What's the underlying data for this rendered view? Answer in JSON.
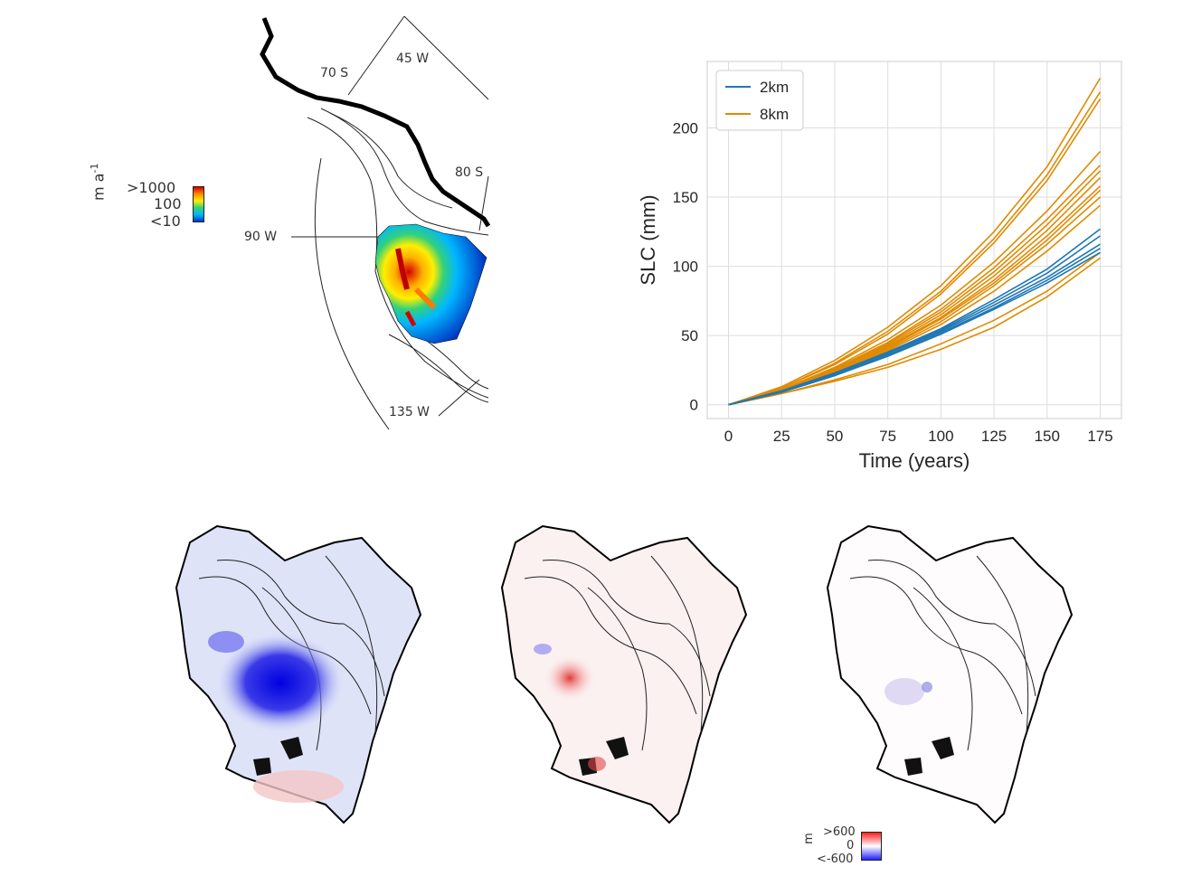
{
  "map_panel": {
    "colorbar": {
      "unit": "m a",
      "unit_exp": "-1",
      "ticks": [
        ">1000",
        "100",
        "<10"
      ],
      "colors": [
        "#d40000",
        "#ff8a00",
        "#ffee00",
        "#33d17a",
        "#00b7ff",
        "#0038c8"
      ]
    },
    "graticule_labels": {
      "lat_70": "70 S",
      "lat_80": "80 S",
      "lon_45": "45 W",
      "lon_90": "90 W",
      "lon_135": "135 W"
    }
  },
  "chart_data": {
    "type": "line",
    "ylabel": "SLC (mm)",
    "xlabel": "Time (years)",
    "xlim": [
      -10,
      185
    ],
    "ylim": [
      -10,
      248
    ],
    "x_ticks": [
      0,
      25,
      50,
      75,
      100,
      125,
      150,
      175
    ],
    "y_ticks": [
      0,
      50,
      100,
      150,
      200
    ],
    "grid": true,
    "legend": {
      "placement": "top-left",
      "entries": [
        "2km",
        "8km"
      ]
    },
    "x": [
      0,
      25,
      50,
      75,
      100,
      125,
      150,
      175
    ],
    "series": [
      {
        "name": "2km",
        "color": "#1f77b4",
        "values": [
          0,
          10,
          23,
          38,
          55,
          76,
          98,
          127
        ]
      },
      {
        "name": "2km",
        "color": "#1f77b4",
        "values": [
          0,
          10,
          22,
          37,
          54,
          74,
          95,
          122
        ]
      },
      {
        "name": "2km",
        "color": "#1f77b4",
        "values": [
          0,
          9,
          22,
          37,
          53,
          72,
          92,
          116
        ]
      },
      {
        "name": "2km",
        "color": "#1f77b4",
        "values": [
          0,
          9,
          21,
          36,
          52,
          70,
          90,
          113
        ]
      },
      {
        "name": "2km",
        "color": "#1f77b4",
        "values": [
          0,
          9,
          21,
          35,
          51,
          69,
          88,
          110
        ]
      },
      {
        "name": "8km",
        "color": "#e08a00",
        "values": [
          0,
          13,
          32,
          56,
          86,
          125,
          172,
          236
        ]
      },
      {
        "name": "8km",
        "color": "#e08a00",
        "values": [
          0,
          12,
          30,
          53,
          82,
          120,
          166,
          226
        ]
      },
      {
        "name": "8km",
        "color": "#e08a00",
        "values": [
          0,
          12,
          29,
          51,
          80,
          117,
          162,
          221
        ]
      },
      {
        "name": "8km",
        "color": "#e08a00",
        "values": [
          0,
          11,
          27,
          47,
          72,
          103,
          140,
          183
        ]
      },
      {
        "name": "8km",
        "color": "#e08a00",
        "values": [
          0,
          11,
          26,
          45,
          69,
          99,
          134,
          173
        ]
      },
      {
        "name": "8km",
        "color": "#e08a00",
        "values": [
          0,
          11,
          25,
          44,
          67,
          96,
          130,
          169
        ]
      },
      {
        "name": "8km",
        "color": "#e08a00",
        "values": [
          0,
          10,
          25,
          43,
          65,
          93,
          126,
          164
        ]
      },
      {
        "name": "8km",
        "color": "#e08a00",
        "values": [
          0,
          10,
          24,
          42,
          63,
          90,
          122,
          158
        ]
      },
      {
        "name": "8km",
        "color": "#e08a00",
        "values": [
          0,
          10,
          24,
          41,
          62,
          88,
          119,
          155
        ]
      },
      {
        "name": "8km",
        "color": "#e08a00",
        "values": [
          0,
          10,
          23,
          40,
          60,
          86,
          116,
          150
        ]
      },
      {
        "name": "8km",
        "color": "#e08a00",
        "values": [
          0,
          9,
          22,
          39,
          58,
          82,
          111,
          144
        ]
      },
      {
        "name": "8km",
        "color": "#e08a00",
        "values": [
          0,
          8,
          18,
          29,
          44,
          61,
          82,
          110
        ]
      },
      {
        "name": "8km",
        "color": "#e08a00",
        "values": [
          0,
          8,
          17,
          27,
          40,
          56,
          78,
          106
        ]
      }
    ]
  },
  "diff_maps": {
    "colorbar": {
      "unit": "m",
      "ticks": [
        ">600",
        "0",
        "<-600"
      ],
      "colors": [
        "#ff2020",
        "#ffffff",
        "#2020ff"
      ]
    }
  }
}
